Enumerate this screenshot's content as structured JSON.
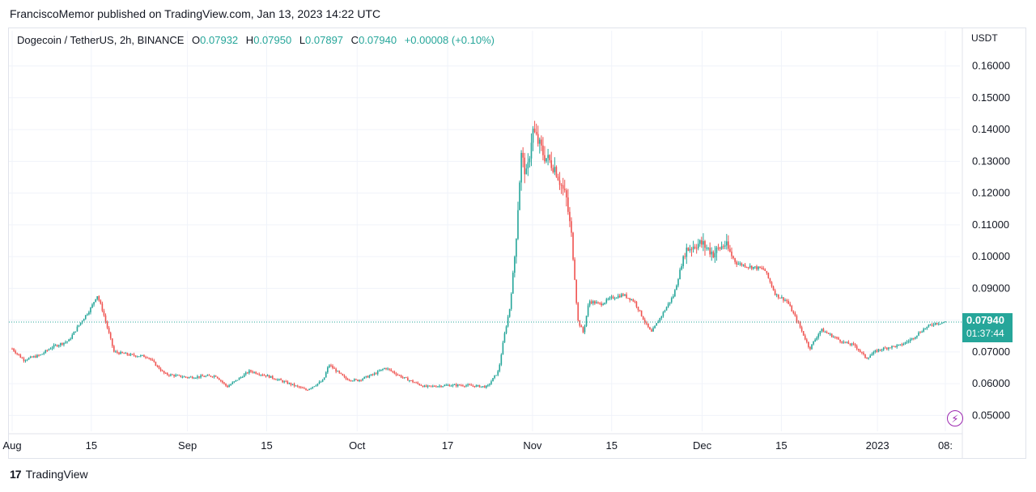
{
  "header": {
    "publisher_line": "FranciscoMemor published on TradingView.com, Jan 13, 2023 14:22 UTC"
  },
  "legend": {
    "symbol": "Dogecoin / TetherUS, 2h, BINANCE",
    "open_label": "O",
    "open": "0.07932",
    "high_label": "H",
    "high": "0.07950",
    "low_label": "L",
    "low": "0.07897",
    "close_label": "C",
    "close": "0.07940",
    "change": "+0.00008 (+0.10%)"
  },
  "price_scale": {
    "currency": "USDT"
  },
  "price_tag": {
    "price": "0.07940",
    "countdown": "01:37:44"
  },
  "footer": {
    "brand": "TradingView",
    "logo_mark": "17"
  },
  "colors": {
    "up": "#26a69a",
    "down": "#ef5350",
    "grid": "#f0f3fa",
    "bolt": "#9c27b0"
  },
  "icons": {
    "bolt": "lightning-bolt-icon"
  },
  "chart_data": {
    "type": "candlestick",
    "y_range": [
      0.045,
      0.166
    ],
    "y_ticks": [
      "0.16000",
      "0.15000",
      "0.14000",
      "0.13000",
      "0.12000",
      "0.11000",
      "0.10000",
      "0.09000",
      "0.08000",
      "0.07000",
      "0.06000",
      "0.05000"
    ],
    "x_ticks": [
      {
        "label": "Aug",
        "date": "2022-08-01"
      },
      {
        "label": "15",
        "date": "2022-08-15"
      },
      {
        "label": "Sep",
        "date": "2022-09-01"
      },
      {
        "label": "15",
        "date": "2022-09-15"
      },
      {
        "label": "Oct",
        "date": "2022-10-01"
      },
      {
        "label": "17",
        "date": "2022-10-17"
      },
      {
        "label": "Nov",
        "date": "2022-11-01"
      },
      {
        "label": "15",
        "date": "2022-11-15"
      },
      {
        "label": "Dec",
        "date": "2022-12-01"
      },
      {
        "label": "15",
        "date": "2022-12-15"
      },
      {
        "label": "2023",
        "date": "2023-01-01"
      },
      {
        "label": "08:",
        "date": "2023-01-13"
      }
    ],
    "current_price": 0.0794,
    "price_path": [
      [
        "2022-08-01",
        0.071
      ],
      [
        "2022-08-03",
        0.0675
      ],
      [
        "2022-08-06",
        0.069
      ],
      [
        "2022-08-08",
        0.0715
      ],
      [
        "2022-08-11",
        0.0735
      ],
      [
        "2022-08-13",
        0.079
      ],
      [
        "2022-08-15",
        0.084
      ],
      [
        "2022-08-16",
        0.088
      ],
      [
        "2022-08-17",
        0.083
      ],
      [
        "2022-08-19",
        0.07
      ],
      [
        "2022-08-22",
        0.069
      ],
      [
        "2022-08-25",
        0.0685
      ],
      [
        "2022-08-28",
        0.063
      ],
      [
        "2022-09-01",
        0.062
      ],
      [
        "2022-09-06",
        0.0625
      ],
      [
        "2022-09-08",
        0.059
      ],
      [
        "2022-09-12",
        0.064
      ],
      [
        "2022-09-15",
        0.0625
      ],
      [
        "2022-09-19",
        0.06
      ],
      [
        "2022-09-22",
        0.058
      ],
      [
        "2022-09-25",
        0.061
      ],
      [
        "2022-09-26",
        0.066
      ],
      [
        "2022-09-29",
        0.0615
      ],
      [
        "2022-10-01",
        0.061
      ],
      [
        "2022-10-04",
        0.063
      ],
      [
        "2022-10-06",
        0.065
      ],
      [
        "2022-10-09",
        0.062
      ],
      [
        "2022-10-13",
        0.059
      ],
      [
        "2022-10-17",
        0.0595
      ],
      [
        "2022-10-20",
        0.0595
      ],
      [
        "2022-10-24",
        0.059
      ],
      [
        "2022-10-26",
        0.064
      ],
      [
        "2022-10-27",
        0.075
      ],
      [
        "2022-10-28",
        0.084
      ],
      [
        "2022-10-29",
        0.103
      ],
      [
        "2022-10-30",
        0.132
      ],
      [
        "2022-10-31",
        0.125
      ],
      [
        "2022-11-01",
        0.14
      ],
      [
        "2022-11-03",
        0.132
      ],
      [
        "2022-11-05",
        0.128
      ],
      [
        "2022-11-07",
        0.118
      ],
      [
        "2022-11-08",
        0.105
      ],
      [
        "2022-11-09",
        0.08
      ],
      [
        "2022-11-10",
        0.076
      ],
      [
        "2022-11-11",
        0.086
      ],
      [
        "2022-11-13",
        0.085
      ],
      [
        "2022-11-15",
        0.087
      ],
      [
        "2022-11-17",
        0.088
      ],
      [
        "2022-11-19",
        0.086
      ],
      [
        "2022-11-21",
        0.079
      ],
      [
        "2022-11-22",
        0.076
      ],
      [
        "2022-11-24",
        0.082
      ],
      [
        "2022-11-26",
        0.088
      ],
      [
        "2022-11-28",
        0.102
      ],
      [
        "2022-11-30",
        0.104
      ],
      [
        "2022-12-01",
        0.104
      ],
      [
        "2022-12-03",
        0.101
      ],
      [
        "2022-12-05",
        0.104
      ],
      [
        "2022-12-07",
        0.098
      ],
      [
        "2022-12-09",
        0.097
      ],
      [
        "2022-12-12",
        0.096
      ],
      [
        "2022-12-14",
        0.088
      ],
      [
        "2022-12-16",
        0.086
      ],
      [
        "2022-12-18",
        0.079
      ],
      [
        "2022-12-20",
        0.071
      ],
      [
        "2022-12-22",
        0.077
      ],
      [
        "2022-12-24",
        0.075
      ],
      [
        "2022-12-26",
        0.073
      ],
      [
        "2022-12-28",
        0.072
      ],
      [
        "2022-12-30",
        0.068
      ],
      [
        "2023-01-01",
        0.0705
      ],
      [
        "2023-01-03",
        0.0715
      ],
      [
        "2023-01-05",
        0.072
      ],
      [
        "2023-01-07",
        0.074
      ],
      [
        "2023-01-09",
        0.077
      ],
      [
        "2023-01-11",
        0.079
      ],
      [
        "2023-01-13",
        0.0794
      ]
    ]
  }
}
